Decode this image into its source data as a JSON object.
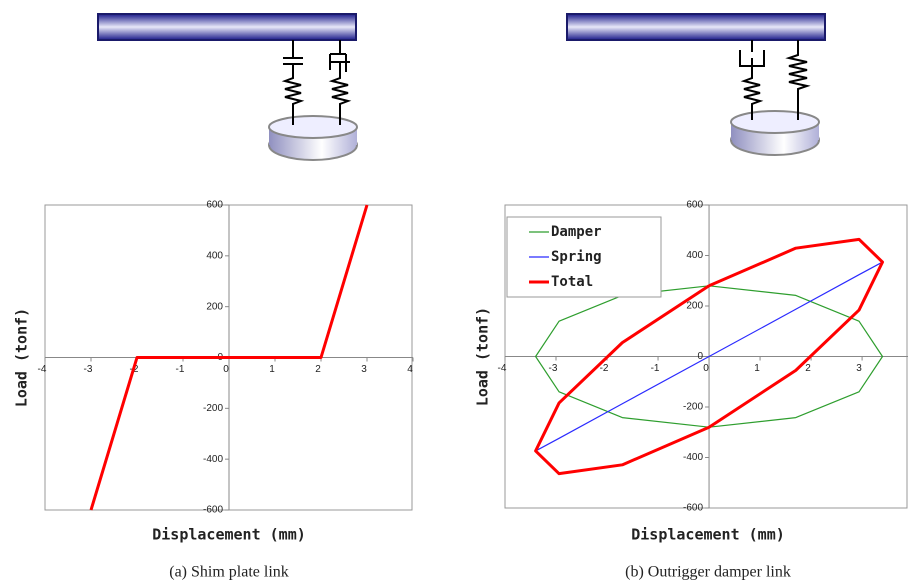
{
  "chart_data": [
    {
      "type": "line",
      "caption": "(a) Shim plate link",
      "x_label": "Displacement (mm)",
      "y_label": "Load (tonf)",
      "x": [
        -3,
        -2,
        2,
        3
      ],
      "series": [
        {
          "name": null,
          "color": "#ff0000",
          "values": [
            -600,
            0,
            0,
            600
          ]
        }
      ],
      "xlim": [
        -4,
        4
      ],
      "xticks": [
        -4,
        -3,
        -2,
        -1,
        0,
        1,
        2,
        3,
        4
      ],
      "ylim": [
        -600,
        600
      ],
      "yticks": [
        -600,
        -400,
        -200,
        0,
        200,
        400,
        600
      ],
      "legend": null
    },
    {
      "type": "line",
      "caption": "(b) Outrigger damper link",
      "x_label": "Displacement (mm)",
      "y_label": "Load (tonf)",
      "x": [
        0,
        1.7,
        2.94,
        3.4,
        2.94,
        1.7,
        0,
        -1.7,
        -2.94,
        -3.4,
        -2.94,
        -1.7,
        0
      ],
      "series": [
        {
          "name": "Damper",
          "color": "#2e9e2e",
          "values": [
            280,
            242,
            140,
            0,
            -140,
            -242,
            -280,
            -242,
            -140,
            0,
            140,
            242,
            280
          ]
        },
        {
          "name": "Spring",
          "color": "#2b2bff",
          "values": [
            0,
            187,
            324,
            374,
            324,
            187,
            0,
            -187,
            -324,
            -374,
            -324,
            -187,
            0
          ]
        },
        {
          "name": "Total",
          "color": "#ff0000",
          "values": [
            280,
            429,
            464,
            374,
            184,
            -55,
            -280,
            -429,
            -464,
            -374,
            -184,
            55,
            280
          ]
        }
      ],
      "xlim": [
        -4,
        3.9
      ],
      "xticks": [
        -4,
        -3,
        -2,
        -1,
        0,
        1,
        2,
        3
      ],
      "ylim": [
        -600,
        600
      ],
      "yticks": [
        -600,
        -400,
        -200,
        0,
        200,
        400,
        600
      ],
      "legend": "upper left"
    }
  ]
}
